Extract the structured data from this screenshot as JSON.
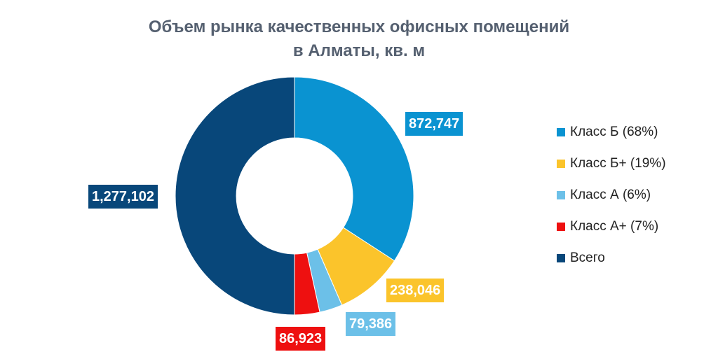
{
  "chart_data": {
    "type": "donut",
    "title_lines": [
      "Объем рынка качественных офисных помещений",
      "в Алматы, кв. м"
    ],
    "series": [
      {
        "name": "Класс Б (68%)",
        "value": 872747,
        "label": "872,747",
        "color": "#0a93d1"
      },
      {
        "name": "Класс Б+ (19%)",
        "value": 238046,
        "label": "238,046",
        "color": "#fbc42b"
      },
      {
        "name": "Класс А (6%)",
        "value": 79386,
        "label": "79,386",
        "color": "#6cc0e8"
      },
      {
        "name": "Класс А+ (7%)",
        "value": 86923,
        "label": "86,923",
        "color": "#ee1010"
      },
      {
        "name": "Всего",
        "value": 1277102,
        "label": "1,277,102",
        "color": "#08477a"
      }
    ],
    "start_angle_deg": 0,
    "direction": "clockwise",
    "legend_position": "right"
  }
}
